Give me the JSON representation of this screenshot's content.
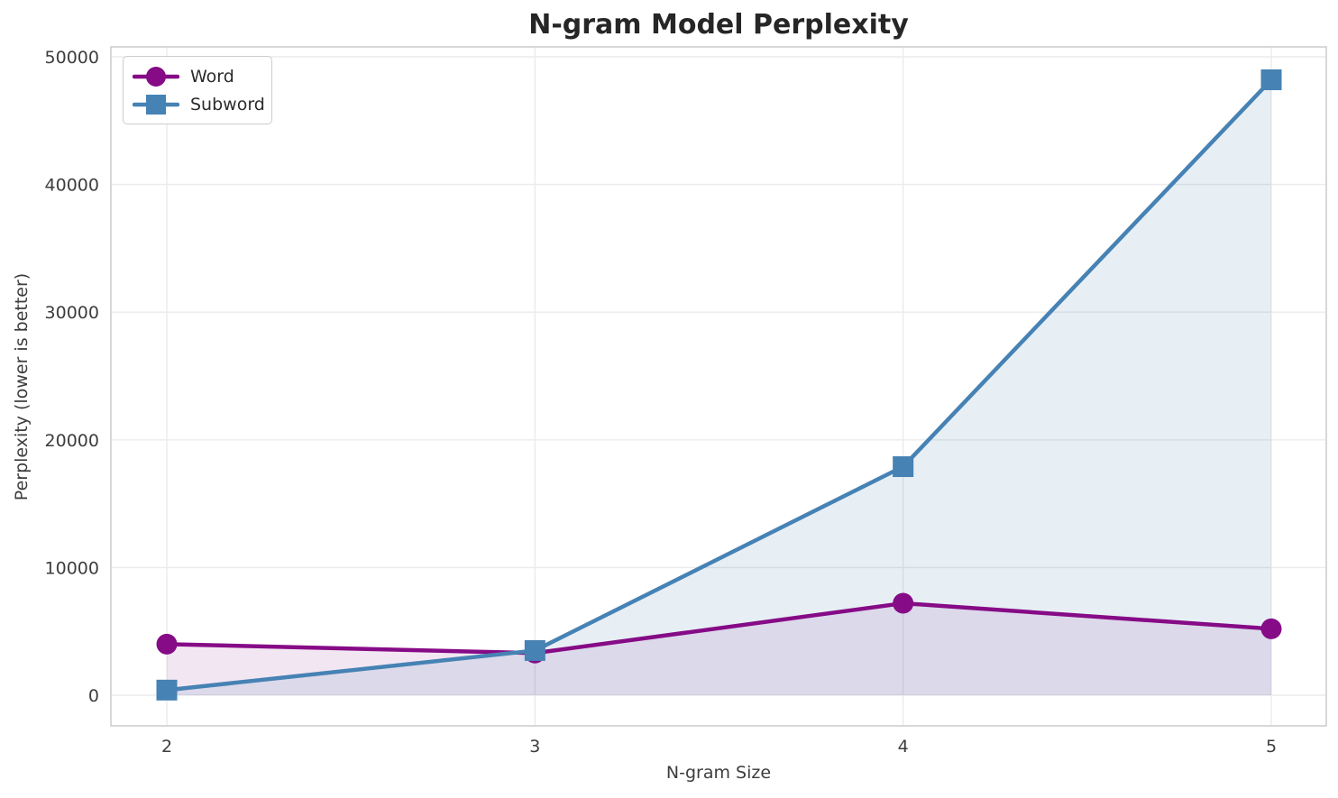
{
  "chart_data": {
    "type": "line",
    "title": "N-gram Model Perplexity",
    "xlabel": "N-gram Size",
    "ylabel": "Perplexity (lower is better)",
    "x": [
      2,
      3,
      4,
      5
    ],
    "xtick_labels": [
      "2",
      "3",
      "4",
      "5"
    ],
    "yticks": [
      0,
      10000,
      20000,
      30000,
      40000,
      50000
    ],
    "ytick_labels": [
      "0",
      "10000",
      "20000",
      "30000",
      "40000",
      "50000"
    ],
    "ylim": [
      -2400,
      50800
    ],
    "grid": true,
    "legend_position": "upper left",
    "series": [
      {
        "name": "Word",
        "color": "#860b86",
        "marker": "circle",
        "fill_opacity": 0.1,
        "values": [
          4000,
          3300,
          7200,
          5200
        ]
      },
      {
        "name": "Subword",
        "color": "#4682b4",
        "marker": "square",
        "fill_opacity": 0.13,
        "values": [
          400,
          3500,
          17900,
          48200
        ]
      }
    ]
  },
  "theme": {
    "background": "#ffffff",
    "grid_color": "#ebebeb",
    "spine_color": "#cfcfcf",
    "tick_color": "#3d3d3d",
    "title_color": "#262626"
  }
}
